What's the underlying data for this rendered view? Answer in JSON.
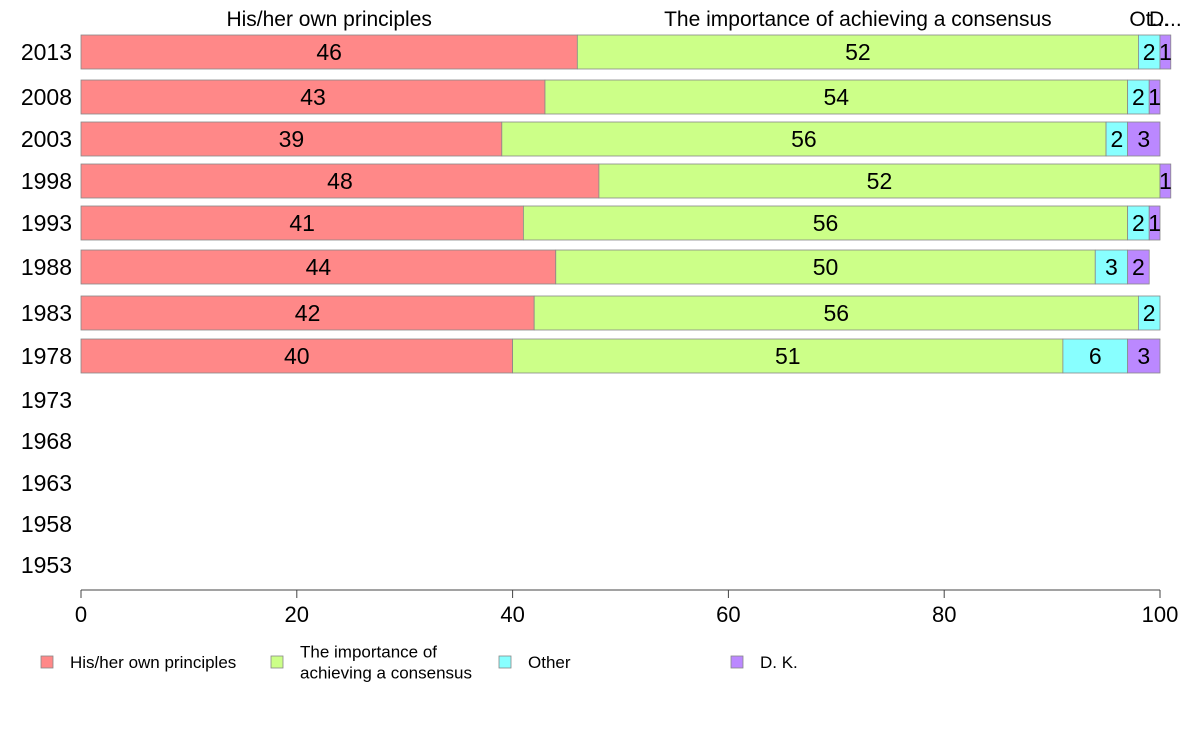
{
  "chart_data": {
    "type": "bar",
    "orientation": "horizontal",
    "stacked": true,
    "categories": [
      "2013",
      "2008",
      "2003",
      "1998",
      "1993",
      "1988",
      "1983",
      "1978",
      "1973",
      "1968",
      "1963",
      "1958",
      "1953"
    ],
    "series": [
      {
        "name": "His/her own principles",
        "color": "#ff8888",
        "values": [
          46,
          43,
          39,
          48,
          41,
          44,
          42,
          40,
          null,
          null,
          null,
          null,
          null
        ]
      },
      {
        "name": "The importance of achieving a consensus",
        "color": "#ccff88",
        "values": [
          52,
          54,
          56,
          52,
          56,
          50,
          56,
          51,
          null,
          null,
          null,
          null,
          null
        ]
      },
      {
        "name": "Other",
        "color": "#88ffff",
        "values": [
          2,
          2,
          2,
          0,
          2,
          3,
          2,
          6,
          null,
          null,
          null,
          null,
          null
        ]
      },
      {
        "name": "D. K.",
        "color": "#bb88ff",
        "values": [
          1,
          1,
          3,
          1,
          1,
          2,
          0,
          3,
          null,
          null,
          null,
          null,
          null
        ]
      }
    ],
    "top_labels": [
      "His/her own principles",
      "The importance of achieving a consensus",
      "Ot...",
      "D..."
    ],
    "legend_labels": [
      [
        "His/her own principles"
      ],
      [
        "The importance of",
        "achieving a consensus"
      ],
      [
        "Other"
      ],
      [
        "D. K."
      ]
    ],
    "xlim": [
      0,
      100
    ],
    "xticks": [
      0,
      20,
      40,
      60,
      80,
      100
    ],
    "legend_position": "bottom",
    "grid": false,
    "title": "",
    "xlabel": "",
    "ylabel": ""
  }
}
